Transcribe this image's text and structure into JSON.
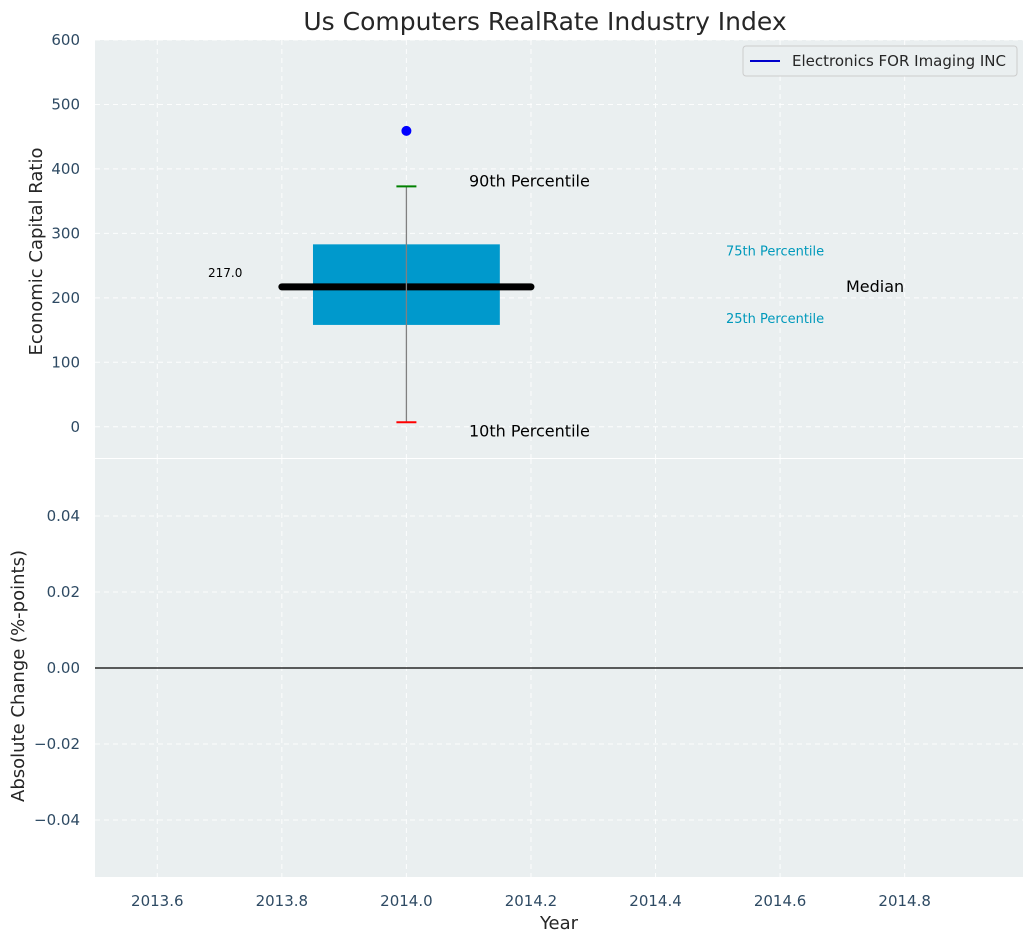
{
  "chart_data": {
    "type": "box",
    "title": "Us Computers RealRate Industry Index",
    "legend": {
      "placement": "top-right",
      "entries": [
        {
          "label": "Electronics FOR Imaging INC",
          "color": "#0000cc"
        }
      ]
    },
    "colors": {
      "plot_bg": "#eaeff0",
      "box": "#0099cc",
      "median": "#000000",
      "p90": "#008000",
      "p10": "#ff0000",
      "whisker": "#808080",
      "company_point": "#0000ff",
      "tick_text": "#2e4a63",
      "quartile_label": "#0099bb"
    },
    "x_axis": {
      "label": "Year",
      "range": [
        2013.5,
        2014.99
      ],
      "ticks": [
        2013.6,
        2013.8,
        2014.0,
        2014.2,
        2014.4,
        2014.6,
        2014.8
      ],
      "tick_labels": [
        "2013.6",
        "2013.8",
        "2014.0",
        "2014.2",
        "2014.4",
        "2014.6",
        "2014.8"
      ]
    },
    "top_panel": {
      "ylabel": "Economic Capital Ratio",
      "ylim": [
        -50,
        600
      ],
      "yticks": [
        0,
        100,
        200,
        300,
        400,
        500,
        600
      ],
      "ytick_labels": [
        "0",
        "100",
        "200",
        "300",
        "400",
        "500",
        "600"
      ],
      "grid": true,
      "box": {
        "x": 2014.0,
        "x_start": 2013.85,
        "x_end": 2014.15,
        "p10": 7,
        "p25": 158,
        "median": 217.0,
        "p75": 283,
        "p90": 373,
        "median_x_start": 2013.8,
        "median_x_end": 2014.2
      },
      "company_value": {
        "x": 2014.0,
        "y": 459
      },
      "median_value_label": "217.0",
      "annotations": {
        "p90": "90th Percentile",
        "p10": "10th Percentile",
        "p75": "75th Percentile",
        "p25": "25th Percentile",
        "median": "Median"
      }
    },
    "bottom_panel": {
      "ylabel": "Absolute Change (%-points)",
      "ylim": [
        -0.055,
        0.055
      ],
      "yticks": [
        0.04,
        0.02,
        0.0,
        -0.02,
        -0.04
      ],
      "ytick_labels": [
        "0.04",
        "0.02",
        "0.00",
        "−0.02",
        "−0.04"
      ],
      "zero_line": 0.0,
      "grid": true
    }
  }
}
